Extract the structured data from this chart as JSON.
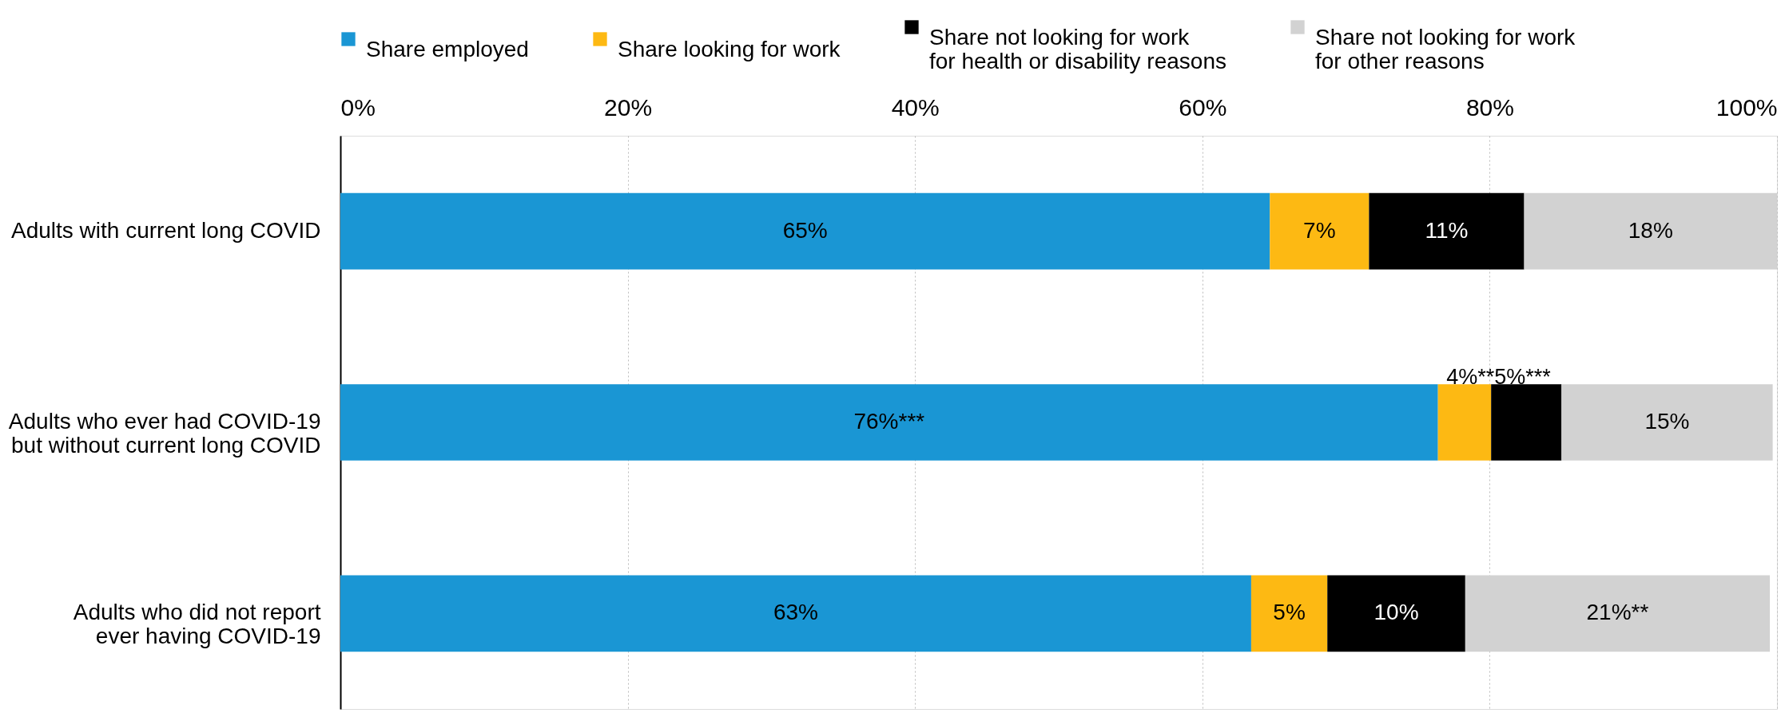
{
  "chart_data": {
    "type": "bar",
    "orientation": "horizontal",
    "stacked": true,
    "categories": [
      "Adults with current long COVID",
      "Adults who ever had COVID-19\nbut without current long COVID",
      "Adults who did not report\never having COVID-19"
    ],
    "series": [
      {
        "name": "Share employed",
        "color": "#1a96d4",
        "values": [
          64.7,
          76.4,
          63.4
        ],
        "value_labels": [
          "65%",
          "76%***",
          "63%"
        ]
      },
      {
        "name": "Share looking for work",
        "color": "#fdb913",
        "values": [
          6.9,
          3.7,
          5.3
        ],
        "value_labels": [
          "7%",
          "4%**",
          "5%"
        ]
      },
      {
        "name": "Share not looking for work\nfor health or disability reasons",
        "color": "#000000",
        "values": [
          10.8,
          4.9,
          9.6
        ],
        "value_labels": [
          "11%",
          "5%***",
          "10%"
        ]
      },
      {
        "name": "Share not looking for work\nfor other reasons",
        "color": "#d2d2d2",
        "values": [
          17.6,
          14.7,
          21.2
        ],
        "value_labels": [
          "18%",
          "15%",
          "21%**"
        ]
      }
    ],
    "xlim": [
      0,
      100
    ],
    "xticks": [
      {
        "value": 0,
        "label": "0%"
      },
      {
        "value": 20,
        "label": "20%"
      },
      {
        "value": 40,
        "label": "40%"
      },
      {
        "value": 60,
        "label": "60%"
      },
      {
        "value": 80,
        "label": "80%"
      },
      {
        "value": 100,
        "label": "100%"
      }
    ],
    "grid": "x",
    "legend": "top"
  }
}
